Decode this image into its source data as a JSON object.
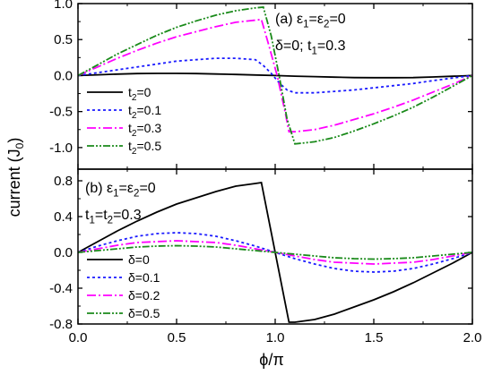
{
  "figure": {
    "ylabel": "current (J",
    "ylabel_sub": "0",
    "ylabel_end": ")",
    "xlabel": "ϕ/π"
  },
  "chart_data": [
    {
      "type": "line",
      "panel": "(a)",
      "annotation_lines": [
        [
          {
            "t": "(a) ε"
          },
          {
            "t": "1",
            "sub": true
          },
          {
            "t": "=ε"
          },
          {
            "t": "2",
            "sub": true
          },
          {
            "t": "=0"
          }
        ],
        [
          {
            "t": "δ=0; t"
          },
          {
            "t": "1",
            "sub": true
          },
          {
            "t": "=0.3"
          }
        ]
      ],
      "xlim": [
        0,
        2
      ],
      "ylim": [
        -1.3,
        1.0
      ],
      "yticks": [
        1.0,
        0.5,
        0.0,
        -0.5,
        -1.0
      ],
      "ytick_labels": [
        "1.0",
        "0.5",
        "0.0",
        "-0.5",
        "-1.0"
      ],
      "legend_position": "bottom-left",
      "series": [
        {
          "name": "t2=0",
          "legend": [
            {
              "t": "t"
            },
            {
              "t": "2",
              "sub": true
            },
            {
              "t": "=0"
            }
          ],
          "color": "#000000",
          "dash": "",
          "x": [
            0,
            0.1,
            0.2,
            0.3,
            0.4,
            0.5,
            0.6,
            0.7,
            0.8,
            0.9,
            1.0,
            1.1,
            1.2,
            1.3,
            1.4,
            1.5,
            1.6,
            1.7,
            1.8,
            1.9,
            2.0
          ],
          "y": [
            0,
            0.01,
            0.02,
            0.028,
            0.03,
            0.03,
            0.028,
            0.022,
            0.015,
            0.008,
            0,
            -0.008,
            -0.015,
            -0.022,
            -0.028,
            -0.03,
            -0.03,
            -0.028,
            -0.02,
            -0.01,
            0
          ]
        },
        {
          "name": "t2=0.1",
          "legend": [
            {
              "t": "t"
            },
            {
              "t": "2",
              "sub": true
            },
            {
              "t": "=0.1"
            }
          ],
          "color": "#1a1aff",
          "dash": "3,3",
          "x": [
            0,
            0.1,
            0.2,
            0.3,
            0.4,
            0.5,
            0.6,
            0.7,
            0.8,
            0.9,
            0.94,
            0.98,
            1.02,
            1.06,
            1.1,
            1.2,
            1.3,
            1.4,
            1.5,
            1.6,
            1.7,
            1.8,
            1.9,
            2.0
          ],
          "y": [
            0,
            0.04,
            0.08,
            0.12,
            0.16,
            0.2,
            0.22,
            0.24,
            0.24,
            0.22,
            0.14,
            0.03,
            -0.1,
            -0.2,
            -0.24,
            -0.24,
            -0.22,
            -0.2,
            -0.17,
            -0.14,
            -0.11,
            -0.07,
            -0.035,
            0
          ]
        },
        {
          "name": "t2=0.3",
          "legend": [
            {
              "t": "t"
            },
            {
              "t": "2",
              "sub": true
            },
            {
              "t": "=0.3"
            }
          ],
          "color": "#ff00ff",
          "dash": "10,3,2,3",
          "x": [
            0,
            0.1,
            0.2,
            0.3,
            0.4,
            0.5,
            0.6,
            0.7,
            0.8,
            0.9,
            0.93,
            0.97,
            1.01,
            1.05,
            1.07,
            1.1,
            1.2,
            1.3,
            1.4,
            1.5,
            1.6,
            1.7,
            1.8,
            1.9,
            2.0
          ],
          "y": [
            0,
            0.12,
            0.24,
            0.35,
            0.45,
            0.54,
            0.61,
            0.68,
            0.74,
            0.77,
            0.78,
            0.4,
            0.0,
            -0.5,
            -0.78,
            -0.78,
            -0.75,
            -0.69,
            -0.61,
            -0.53,
            -0.44,
            -0.34,
            -0.23,
            -0.12,
            0
          ]
        },
        {
          "name": "t2=0.5",
          "legend": [
            {
              "t": "t"
            },
            {
              "t": "2",
              "sub": true
            },
            {
              "t": "=0.5"
            }
          ],
          "color": "#1a8a1a",
          "dash": "8,2,2,2,2,2",
          "x": [
            0,
            0.1,
            0.2,
            0.3,
            0.4,
            0.5,
            0.6,
            0.7,
            0.8,
            0.9,
            0.94,
            0.98,
            1.02,
            1.06,
            1.1,
            1.2,
            1.3,
            1.4,
            1.5,
            1.6,
            1.7,
            1.8,
            1.9,
            2.0
          ],
          "y": [
            0,
            0.15,
            0.3,
            0.43,
            0.56,
            0.67,
            0.76,
            0.84,
            0.9,
            0.94,
            0.95,
            0.55,
            0.0,
            -0.6,
            -0.95,
            -0.92,
            -0.86,
            -0.77,
            -0.67,
            -0.56,
            -0.44,
            -0.3,
            -0.15,
            0
          ]
        }
      ]
    },
    {
      "type": "line",
      "panel": "(b)",
      "annotation_lines": [
        [
          {
            "t": "(b) ε"
          },
          {
            "t": "1",
            "sub": true
          },
          {
            "t": "=ε"
          },
          {
            "t": "2",
            "sub": true
          },
          {
            "t": "=0"
          }
        ],
        [
          {
            "t": "t"
          },
          {
            "t": "1",
            "sub": true
          },
          {
            "t": "=t"
          },
          {
            "t": "2",
            "sub": true
          },
          {
            "t": "=0.3"
          }
        ]
      ],
      "xlim": [
        0,
        2
      ],
      "ylim": [
        -0.8,
        0.93
      ],
      "yticks": [
        0.8,
        0.4,
        0.0,
        -0.4,
        -0.8
      ],
      "ytick_labels": [
        "0.8",
        "0.4",
        "0.0",
        "-0.4",
        "-0.8"
      ],
      "xticks": [
        0.0,
        0.5,
        1.0,
        1.5,
        2.0
      ],
      "xtick_labels": [
        "0.0",
        "0.5",
        "1.0",
        "1.5",
        "2.0"
      ],
      "legend_position": "bottom-left",
      "series": [
        {
          "name": "δ=0",
          "legend": [
            {
              "t": "δ=0"
            }
          ],
          "color": "#000000",
          "dash": "",
          "x": [
            0,
            0.1,
            0.2,
            0.3,
            0.4,
            0.5,
            0.6,
            0.7,
            0.8,
            0.9,
            0.93,
            1.07,
            1.1,
            1.2,
            1.3,
            1.4,
            1.5,
            1.6,
            1.7,
            1.8,
            1.9,
            2.0
          ],
          "y": [
            0,
            0.12,
            0.24,
            0.35,
            0.45,
            0.54,
            0.61,
            0.68,
            0.74,
            0.77,
            0.78,
            -0.78,
            -0.78,
            -0.75,
            -0.69,
            -0.61,
            -0.53,
            -0.44,
            -0.34,
            -0.23,
            -0.12,
            0
          ]
        },
        {
          "name": "δ=0.1",
          "legend": [
            {
              "t": "δ=0.1"
            }
          ],
          "color": "#1a1aff",
          "dash": "3,3",
          "x": [
            0,
            0.1,
            0.2,
            0.3,
            0.4,
            0.5,
            0.6,
            0.7,
            0.8,
            0.9,
            1.0,
            1.1,
            1.2,
            1.3,
            1.4,
            1.5,
            1.6,
            1.7,
            1.8,
            1.9,
            2.0
          ],
          "y": [
            0,
            0.07,
            0.13,
            0.18,
            0.21,
            0.22,
            0.21,
            0.18,
            0.13,
            0.07,
            0,
            -0.07,
            -0.13,
            -0.18,
            -0.21,
            -0.22,
            -0.21,
            -0.18,
            -0.13,
            -0.07,
            0
          ]
        },
        {
          "name": "δ=0.2",
          "legend": [
            {
              "t": "δ=0.2"
            }
          ],
          "color": "#ff00ff",
          "dash": "10,3,2,3",
          "x": [
            0,
            0.1,
            0.2,
            0.3,
            0.4,
            0.5,
            0.6,
            0.7,
            0.8,
            0.9,
            1.0,
            1.1,
            1.2,
            1.3,
            1.4,
            1.5,
            1.6,
            1.7,
            1.8,
            1.9,
            2.0
          ],
          "y": [
            0,
            0.04,
            0.08,
            0.11,
            0.12,
            0.13,
            0.12,
            0.11,
            0.08,
            0.04,
            0,
            -0.04,
            -0.08,
            -0.11,
            -0.12,
            -0.13,
            -0.12,
            -0.11,
            -0.08,
            -0.04,
            0
          ]
        },
        {
          "name": "δ=0.5",
          "legend": [
            {
              "t": "δ=0.5"
            }
          ],
          "color": "#1a8a1a",
          "dash": "8,2,2,2,2,2",
          "x": [
            0,
            0.1,
            0.2,
            0.3,
            0.4,
            0.5,
            0.6,
            0.7,
            0.8,
            0.9,
            1.0,
            1.1,
            1.2,
            1.3,
            1.4,
            1.5,
            1.6,
            1.7,
            1.8,
            1.9,
            2.0
          ],
          "y": [
            0,
            0.02,
            0.04,
            0.06,
            0.07,
            0.075,
            0.07,
            0.06,
            0.04,
            0.02,
            0,
            -0.02,
            -0.04,
            -0.06,
            -0.07,
            -0.075,
            -0.07,
            -0.06,
            -0.04,
            -0.02,
            0
          ]
        }
      ]
    }
  ]
}
